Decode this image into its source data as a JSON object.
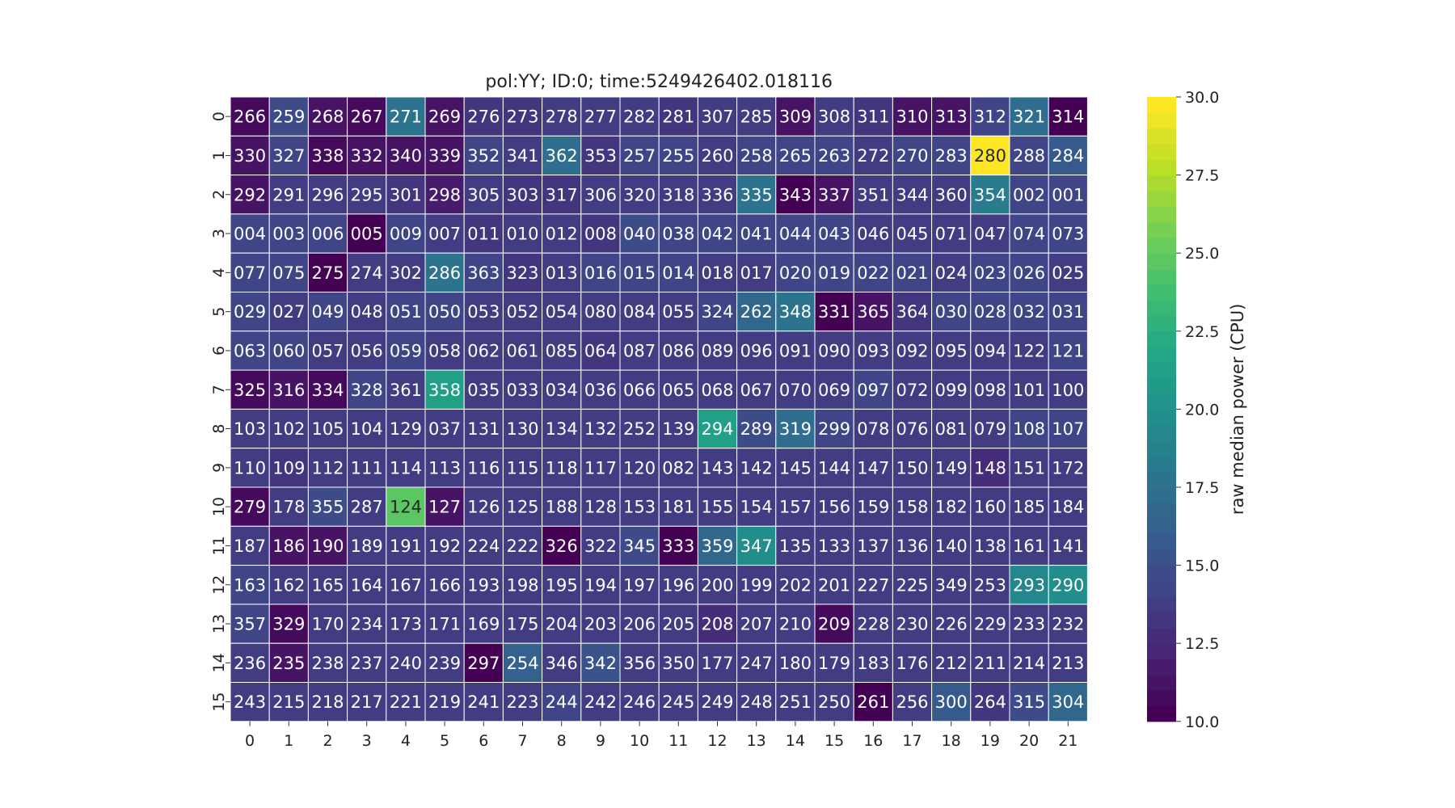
{
  "chart_data": {
    "type": "heatmap",
    "title": "pol:YY; ID:0; time:5249426402.018116",
    "xlabel": "",
    "ylabel": "",
    "x_ticks": [
      "0",
      "1",
      "2",
      "3",
      "4",
      "5",
      "6",
      "7",
      "8",
      "9",
      "10",
      "11",
      "12",
      "13",
      "14",
      "15",
      "16",
      "17",
      "18",
      "19",
      "20",
      "21"
    ],
    "y_ticks": [
      "0",
      "1",
      "2",
      "3",
      "4",
      "5",
      "6",
      "7",
      "8",
      "9",
      "10",
      "11",
      "12",
      "13",
      "14",
      "15"
    ],
    "annotations": [
      [
        "266",
        "259",
        "268",
        "267",
        "271",
        "269",
        "276",
        "273",
        "278",
        "277",
        "282",
        "281",
        "307",
        "285",
        "309",
        "308",
        "311",
        "310",
        "313",
        "312",
        "321",
        "314"
      ],
      [
        "330",
        "327",
        "338",
        "332",
        "340",
        "339",
        "352",
        "341",
        "362",
        "353",
        "257",
        "255",
        "260",
        "258",
        "265",
        "263",
        "272",
        "270",
        "283",
        "280",
        "288",
        "284"
      ],
      [
        "292",
        "291",
        "296",
        "295",
        "301",
        "298",
        "305",
        "303",
        "317",
        "306",
        "320",
        "318",
        "336",
        "335",
        "343",
        "337",
        "351",
        "344",
        "360",
        "354",
        "002",
        "001"
      ],
      [
        "004",
        "003",
        "006",
        "005",
        "009",
        "007",
        "011",
        "010",
        "012",
        "008",
        "040",
        "038",
        "042",
        "041",
        "044",
        "043",
        "046",
        "045",
        "071",
        "047",
        "074",
        "073"
      ],
      [
        "077",
        "075",
        "275",
        "274",
        "302",
        "286",
        "363",
        "323",
        "013",
        "016",
        "015",
        "014",
        "018",
        "017",
        "020",
        "019",
        "022",
        "021",
        "024",
        "023",
        "026",
        "025"
      ],
      [
        "029",
        "027",
        "049",
        "048",
        "051",
        "050",
        "053",
        "052",
        "054",
        "080",
        "084",
        "055",
        "324",
        "262",
        "348",
        "331",
        "365",
        "364",
        "030",
        "028",
        "032",
        "031"
      ],
      [
        "063",
        "060",
        "057",
        "056",
        "059",
        "058",
        "062",
        "061",
        "085",
        "064",
        "087",
        "086",
        "089",
        "096",
        "091",
        "090",
        "093",
        "092",
        "095",
        "094",
        "122",
        "121"
      ],
      [
        "325",
        "316",
        "334",
        "328",
        "361",
        "358",
        "035",
        "033",
        "034",
        "036",
        "066",
        "065",
        "068",
        "067",
        "070",
        "069",
        "097",
        "072",
        "099",
        "098",
        "101",
        "100"
      ],
      [
        "103",
        "102",
        "105",
        "104",
        "129",
        "037",
        "131",
        "130",
        "134",
        "132",
        "252",
        "139",
        "294",
        "289",
        "319",
        "299",
        "078",
        "076",
        "081",
        "079",
        "108",
        "107"
      ],
      [
        "110",
        "109",
        "112",
        "111",
        "114",
        "113",
        "116",
        "115",
        "118",
        "117",
        "120",
        "082",
        "143",
        "142",
        "145",
        "144",
        "147",
        "150",
        "149",
        "148",
        "151",
        "172"
      ],
      [
        "279",
        "178",
        "355",
        "287",
        "124",
        "127",
        "126",
        "125",
        "188",
        "128",
        "153",
        "181",
        "155",
        "154",
        "157",
        "156",
        "159",
        "158",
        "182",
        "160",
        "185",
        "184"
      ],
      [
        "187",
        "186",
        "190",
        "189",
        "191",
        "192",
        "224",
        "222",
        "326",
        "322",
        "345",
        "333",
        "359",
        "347",
        "135",
        "133",
        "137",
        "136",
        "140",
        "138",
        "161",
        "141"
      ],
      [
        "163",
        "162",
        "165",
        "164",
        "167",
        "166",
        "193",
        "198",
        "195",
        "194",
        "197",
        "196",
        "200",
        "199",
        "202",
        "201",
        "227",
        "225",
        "349",
        "253",
        "293",
        "290"
      ],
      [
        "357",
        "329",
        "170",
        "234",
        "173",
        "171",
        "169",
        "175",
        "204",
        "203",
        "206",
        "205",
        "208",
        "207",
        "210",
        "209",
        "228",
        "230",
        "226",
        "229",
        "233",
        "232"
      ],
      [
        "236",
        "235",
        "238",
        "237",
        "240",
        "239",
        "297",
        "254",
        "346",
        "342",
        "356",
        "350",
        "177",
        "247",
        "180",
        "179",
        "183",
        "176",
        "212",
        "211",
        "214",
        "213"
      ],
      [
        "243",
        "215",
        "218",
        "217",
        "221",
        "219",
        "241",
        "223",
        "244",
        "242",
        "246",
        "245",
        "249",
        "248",
        "251",
        "250",
        "261",
        "256",
        "300",
        "264",
        "315",
        "304"
      ]
    ],
    "values": [
      [
        10.8,
        14.8,
        11.2,
        10.6,
        17.8,
        11.2,
        13.2,
        13.3,
        13.6,
        13.6,
        13.7,
        13.1,
        13.6,
        13.8,
        11.0,
        13.7,
        13.0,
        11.0,
        11.4,
        14.4,
        17.0,
        10.4
      ],
      [
        11.4,
        14.4,
        10.6,
        11.0,
        11.2,
        11.0,
        14.1,
        13.6,
        17.2,
        13.3,
        14.4,
        14.2,
        13.8,
        14.0,
        14.1,
        14.4,
        13.6,
        14.0,
        14.0,
        30.0,
        14.4,
        15.7
      ],
      [
        11.2,
        13.8,
        13.8,
        13.7,
        13.3,
        11.5,
        13.8,
        13.3,
        13.3,
        13.6,
        13.9,
        13.6,
        13.5,
        17.7,
        10.2,
        11.0,
        13.8,
        13.6,
        13.6,
        18.2,
        14.0,
        14.0
      ],
      [
        14.0,
        14.4,
        14.2,
        10.4,
        14.0,
        13.8,
        13.4,
        13.6,
        13.6,
        13.4,
        14.5,
        14.0,
        14.0,
        14.0,
        14.4,
        14.0,
        13.6,
        13.8,
        13.6,
        13.6,
        14.0,
        14.0
      ],
      [
        14.3,
        14.0,
        10.4,
        13.8,
        13.8,
        17.8,
        14.0,
        13.3,
        13.8,
        14.0,
        14.0,
        14.0,
        13.8,
        13.5,
        14.0,
        14.0,
        14.0,
        14.0,
        13.8,
        14.0,
        14.0,
        13.9
      ],
      [
        14.0,
        13.8,
        14.0,
        13.9,
        14.0,
        14.0,
        13.8,
        13.6,
        13.8,
        13.6,
        13.5,
        13.6,
        14.0,
        16.5,
        17.6,
        10.4,
        11.0,
        13.3,
        14.0,
        14.0,
        14.0,
        14.0
      ],
      [
        14.0,
        14.0,
        13.8,
        13.8,
        14.0,
        13.8,
        13.6,
        13.6,
        13.6,
        13.4,
        13.6,
        13.6,
        13.6,
        13.8,
        13.6,
        13.7,
        13.6,
        13.6,
        13.6,
        13.6,
        13.9,
        14.0
      ],
      [
        10.6,
        11.0,
        10.8,
        14.4,
        13.8,
        21.0,
        13.8,
        13.6,
        13.8,
        13.8,
        13.8,
        13.6,
        13.6,
        13.8,
        13.9,
        13.8,
        14.0,
        13.8,
        13.8,
        13.7,
        13.9,
        13.8
      ],
      [
        13.8,
        13.6,
        13.8,
        13.8,
        13.8,
        13.6,
        13.8,
        13.8,
        13.6,
        13.6,
        13.6,
        13.6,
        21.0,
        14.5,
        17.2,
        14.2,
        13.8,
        13.6,
        13.7,
        13.6,
        14.0,
        14.0
      ],
      [
        13.6,
        13.4,
        13.6,
        13.6,
        13.6,
        13.6,
        13.6,
        13.6,
        13.6,
        13.6,
        13.6,
        13.6,
        13.7,
        13.6,
        13.6,
        13.6,
        13.6,
        13.6,
        13.6,
        12.8,
        13.8,
        13.6
      ],
      [
        10.7,
        13.6,
        14.7,
        13.6,
        24.5,
        11.2,
        13.7,
        13.6,
        13.6,
        13.6,
        13.6,
        13.6,
        13.7,
        13.6,
        13.6,
        13.6,
        13.6,
        13.6,
        13.6,
        13.6,
        13.8,
        13.6
      ],
      [
        13.6,
        11.0,
        11.2,
        13.6,
        13.6,
        13.6,
        13.6,
        13.6,
        10.4,
        13.6,
        14.8,
        10.2,
        16.8,
        19.8,
        13.6,
        13.6,
        13.6,
        13.6,
        13.6,
        13.6,
        13.8,
        13.6
      ],
      [
        14.0,
        13.8,
        13.8,
        13.8,
        13.8,
        13.8,
        13.8,
        13.6,
        13.6,
        13.6,
        13.6,
        13.6,
        13.8,
        13.6,
        13.7,
        13.7,
        13.6,
        13.6,
        13.8,
        13.6,
        19.0,
        19.5
      ],
      [
        14.0,
        10.5,
        13.6,
        13.6,
        13.6,
        13.6,
        13.6,
        13.6,
        13.6,
        13.6,
        13.6,
        13.6,
        12.8,
        13.6,
        13.6,
        10.6,
        13.6,
        13.6,
        13.6,
        13.6,
        13.6,
        13.6
      ],
      [
        13.6,
        11.0,
        13.8,
        13.8,
        13.6,
        13.6,
        10.4,
        16.0,
        13.8,
        15.0,
        13.8,
        13.6,
        13.7,
        13.6,
        13.6,
        13.6,
        13.6,
        13.6,
        13.6,
        13.6,
        13.6,
        13.6
      ],
      [
        13.8,
        13.6,
        13.6,
        13.6,
        13.6,
        13.6,
        13.8,
        13.6,
        14.0,
        13.8,
        13.8,
        13.8,
        13.7,
        13.8,
        13.6,
        13.8,
        10.4,
        13.6,
        15.8,
        13.4,
        14.5,
        16.6
      ]
    ],
    "colormap": "viridis",
    "vmin": 10.0,
    "vmax": 30.0,
    "colorbar": {
      "label": "raw median power (CPU)",
      "ticks": [
        "10.0",
        "12.5",
        "15.0",
        "17.5",
        "20.0",
        "22.5",
        "25.0",
        "27.5",
        "30.0"
      ],
      "tick_values": [
        10.0,
        12.5,
        15.0,
        17.5,
        20.0,
        22.5,
        25.0,
        27.5,
        30.0
      ]
    },
    "grid": true
  }
}
